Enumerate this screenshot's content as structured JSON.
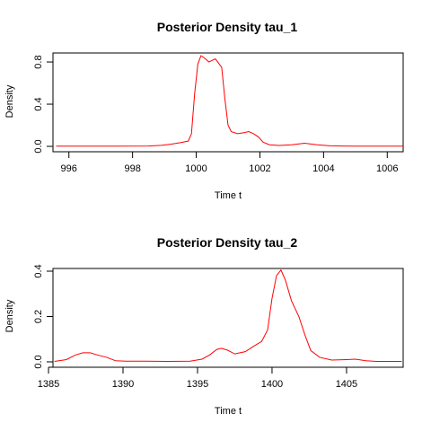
{
  "chart_data": [
    {
      "type": "line",
      "title": "Posterior Density tau_1",
      "xlabel": "Time t",
      "ylabel": "Density",
      "xlim": [
        995.5,
        1006.5
      ],
      "ylim": [
        0.0,
        0.86
      ],
      "xticks": [
        996,
        998,
        1000,
        1002,
        1004,
        1006
      ],
      "yticks": [
        0.0,
        0.4,
        0.8
      ],
      "ytick_labels": [
        "0.0",
        "0.4",
        "0.8"
      ],
      "color": "#ff0000",
      "series": [
        {
          "x": [
            995.6,
            996.5,
            997.5,
            998.5,
            998.9,
            999.2,
            999.5,
            999.75,
            999.85,
            999.95,
            1000.05,
            1000.15,
            1000.25,
            1000.4,
            1000.6,
            1000.8,
            1000.9,
            1001.0,
            1001.1,
            1001.3,
            1001.5,
            1001.65,
            1001.8,
            1001.95,
            1002.1,
            1002.3,
            1002.6,
            1003.0,
            1003.4,
            1003.8,
            1004.2,
            1005.0,
            1006.5
          ],
          "y": [
            0.002,
            0.002,
            0.002,
            0.003,
            0.01,
            0.02,
            0.035,
            0.05,
            0.12,
            0.5,
            0.78,
            0.86,
            0.84,
            0.8,
            0.83,
            0.75,
            0.45,
            0.2,
            0.14,
            0.12,
            0.13,
            0.14,
            0.12,
            0.09,
            0.04,
            0.015,
            0.008,
            0.015,
            0.03,
            0.015,
            0.005,
            0.002,
            0.002
          ]
        }
      ]
    },
    {
      "type": "line",
      "title": "Posterior Density tau_2",
      "xlabel": "Time t",
      "ylabel": "Density",
      "xlim": [
        1385.3,
        1408.8
      ],
      "ylim": [
        0.0,
        0.4
      ],
      "xticks": [
        1385,
        1390,
        1395,
        1400,
        1405
      ],
      "yticks": [
        0.0,
        0.2,
        0.4
      ],
      "ytick_labels": [
        "0.0",
        "0.2",
        "0.4"
      ],
      "color": "#ff0000",
      "series": [
        {
          "x": [
            1385.4,
            1386.2,
            1386.8,
            1387.3,
            1387.8,
            1388.3,
            1388.9,
            1389.5,
            1390.2,
            1391.5,
            1393.0,
            1394.5,
            1395.3,
            1395.8,
            1396.3,
            1396.6,
            1397.0,
            1397.5,
            1398.2,
            1398.8,
            1399.3,
            1399.7,
            1400.0,
            1400.3,
            1400.6,
            1400.9,
            1401.3,
            1401.8,
            1402.2,
            1402.6,
            1403.2,
            1404.0,
            1405.0,
            1405.6,
            1406.3,
            1407.0,
            1408.7
          ],
          "y": [
            0.002,
            0.01,
            0.03,
            0.04,
            0.04,
            0.03,
            0.02,
            0.005,
            0.003,
            0.003,
            0.002,
            0.003,
            0.012,
            0.03,
            0.055,
            0.06,
            0.052,
            0.035,
            0.045,
            0.07,
            0.09,
            0.14,
            0.28,
            0.38,
            0.405,
            0.36,
            0.27,
            0.2,
            0.12,
            0.05,
            0.02,
            0.008,
            0.01,
            0.012,
            0.005,
            0.002,
            0.002
          ]
        }
      ]
    }
  ]
}
